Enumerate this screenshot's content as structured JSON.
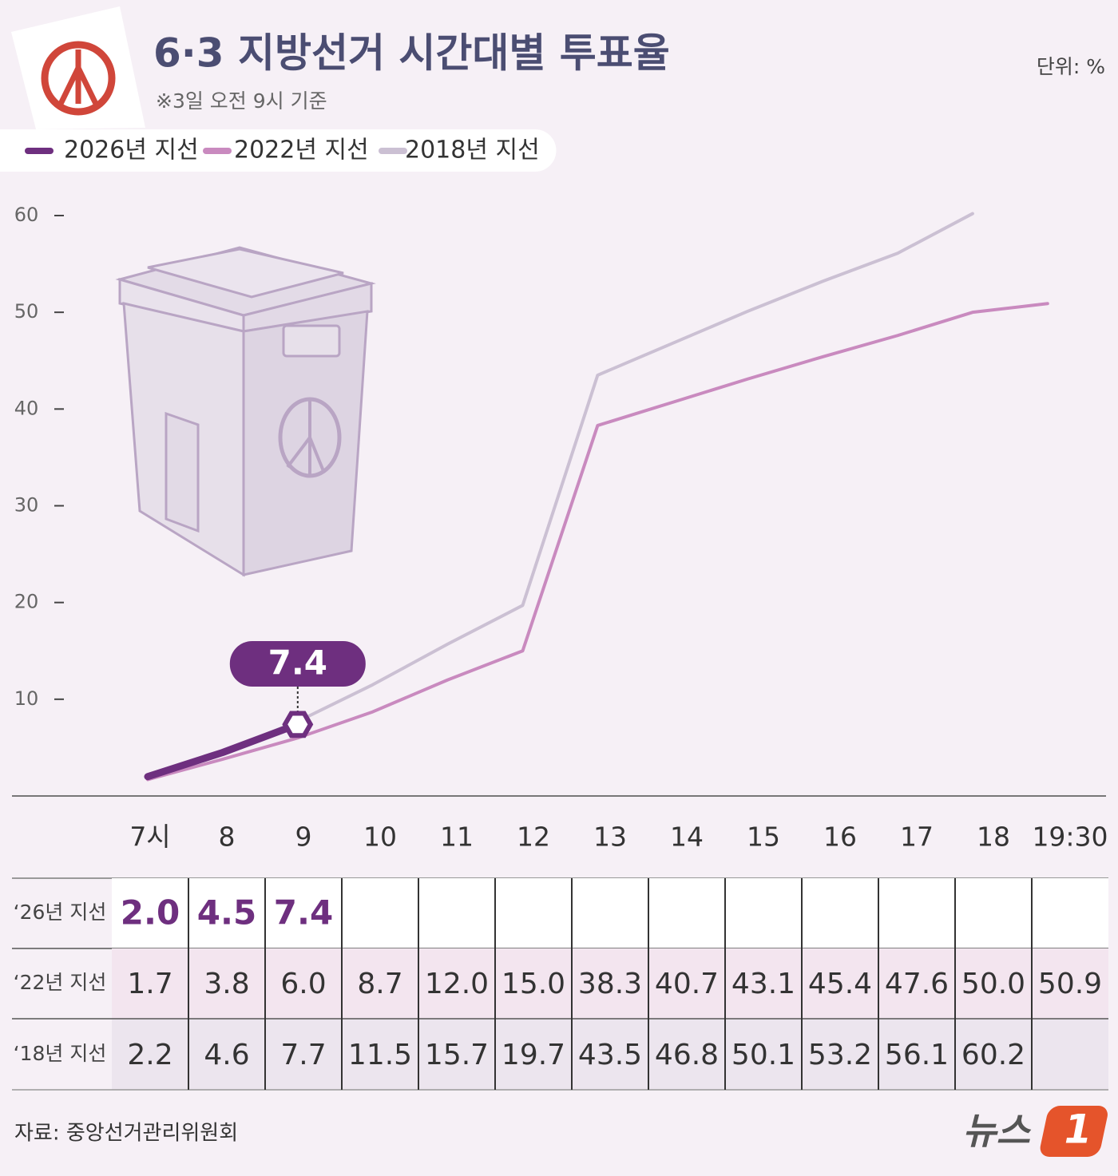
{
  "chart_data": {
    "type": "line",
    "title": "6·3 지방선거 시간대별 투표율",
    "subtitle": "※3일 오전 9시 기준",
    "unit": "단위: %",
    "source": "자료: 중앙선거관리위원회",
    "logo": {
      "text": "뉴스",
      "mark": "1"
    },
    "categories": [
      "7시",
      "8",
      "9",
      "10",
      "11",
      "12",
      "13",
      "14",
      "15",
      "16",
      "17",
      "18",
      "19:30"
    ],
    "series": [
      {
        "name": "2026년 지선",
        "row_label": "‘26년 지선",
        "color": "#6e2f7f",
        "values": [
          2.0,
          4.5,
          7.4,
          null,
          null,
          null,
          null,
          null,
          null,
          null,
          null,
          null,
          null
        ],
        "value_labels": [
          "2.0",
          "4.5",
          "7.4",
          null,
          null,
          null,
          null,
          null,
          null,
          null,
          null,
          null,
          null
        ]
      },
      {
        "name": "2022년 지선",
        "row_label": "‘22년 지선",
        "color": "#c98abf",
        "values": [
          1.7,
          3.8,
          6.0,
          8.7,
          12.0,
          15.0,
          38.3,
          40.7,
          43.1,
          45.4,
          47.6,
          50.0,
          50.9
        ],
        "value_labels": [
          "1.7",
          "3.8",
          "6.0",
          "8.7",
          "12.0",
          "15.0",
          "38.3",
          "40.7",
          "43.1",
          "45.4",
          "47.6",
          "50.0",
          "50.9"
        ]
      },
      {
        "name": "2018년 지선",
        "row_label": "‘18년 지선",
        "color": "#cbc0d3",
        "values": [
          2.2,
          4.6,
          7.7,
          11.5,
          15.7,
          19.7,
          43.5,
          46.8,
          50.1,
          53.2,
          56.1,
          60.2,
          null
        ],
        "value_labels": [
          "2.2",
          "4.6",
          "7.7",
          "11.5",
          "15.7",
          "19.7",
          "43.5",
          "46.8",
          "50.1",
          "53.2",
          "56.1",
          "60.2",
          null
        ]
      }
    ],
    "ylim": [
      0,
      60
    ],
    "yticks": [
      10,
      20,
      30,
      40,
      50,
      60
    ],
    "grid": false
  }
}
